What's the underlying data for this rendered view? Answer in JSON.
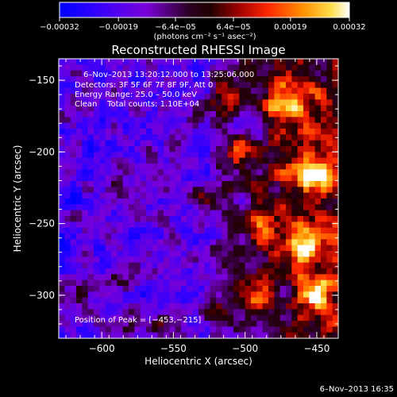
{
  "chart_data": {
    "type": "heatmap",
    "title": "Reconstructed RHESSI Image",
    "xlabel": "Heliocentric X (arcsec)",
    "ylabel": "Heliocentric Y (arcsec)",
    "xlim": [
      -630,
      -435
    ],
    "ylim": [
      -330,
      -135
    ],
    "x_ticks": [
      -600,
      -550,
      -500,
      -450
    ],
    "y_ticks": [
      -150,
      -200,
      -250,
      -300
    ],
    "x_tick_labels": [
      "−600",
      "−550",
      "−500",
      "−450"
    ],
    "y_tick_labels": [
      "−150",
      "−200",
      "−250",
      "−300"
    ],
    "colorbar": {
      "range": [
        -0.00032,
        0.00032
      ],
      "tick_values": [
        -0.00032,
        -0.00019,
        -6.4e-05,
        6.4e-05,
        0.00019,
        0.00032
      ],
      "tick_labels": [
        "−0.00032",
        "−0.00019",
        "−6.4e−05",
        "6.4e−05",
        "0.00019",
        "0.00032"
      ],
      "unit": "(photons cm⁻² s⁻¹ asec⁻²)",
      "colormap": [
        "#0000ff",
        "#4000ff",
        "#7000d0",
        "#3a0018",
        "#a00000",
        "#ff3000",
        "#ff9000",
        "#ffe040",
        "#ffffff"
      ]
    },
    "annotations": [
      "6–Nov–2013 13:20:12.000 to 13:25:06.000",
      "Detectors: 3F 5F 6F 7F 8F 9F, Att 0",
      "Energy Range: 25.0 – 50.0 keV",
      "Clean    Total counts: 1.10E+04"
    ],
    "peak": {
      "label": "Position of Peak = [−453,−215]",
      "x": -453,
      "y": -215
    },
    "timestamp": "6–Nov–2013 16:35",
    "grid": false,
    "legend": "none"
  }
}
